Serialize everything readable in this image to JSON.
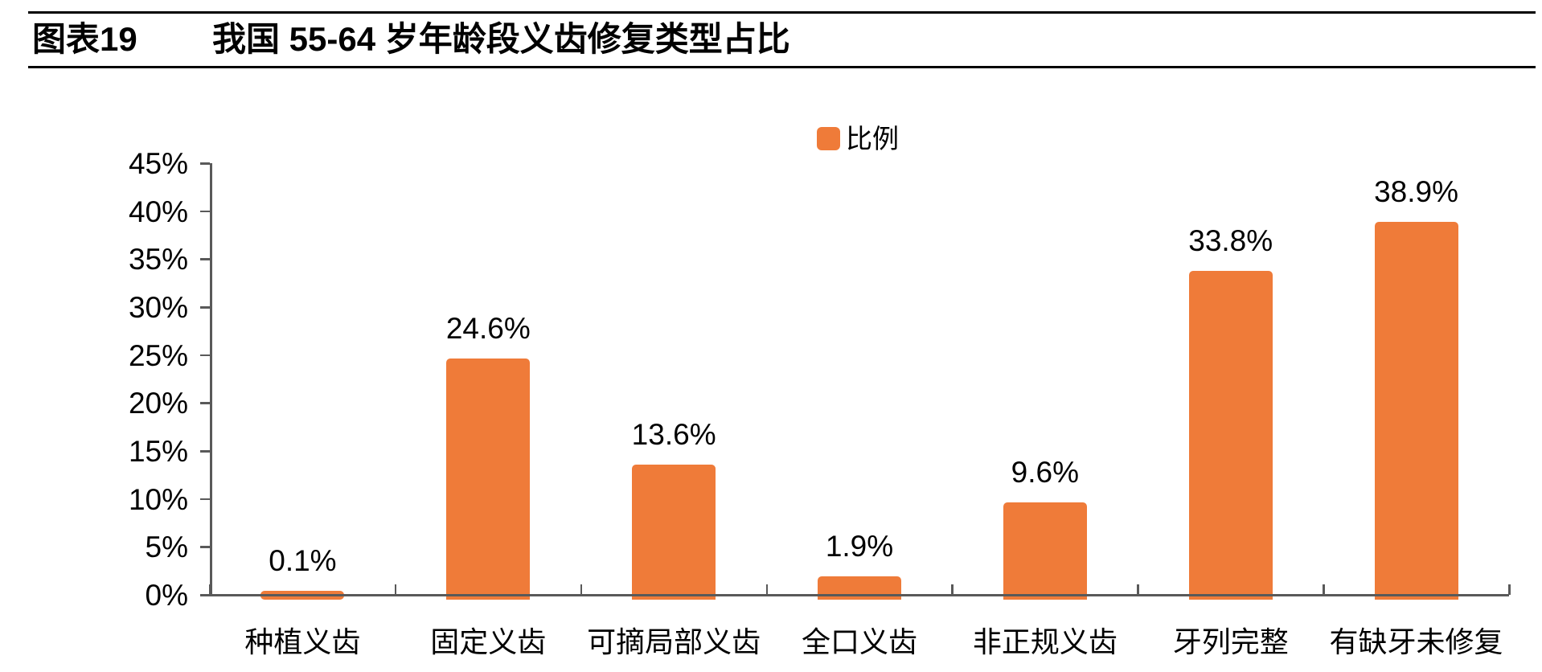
{
  "header": {
    "title_prefix": "图表19",
    "title": "我国 55-64 岁年龄段义齿修复类型占比"
  },
  "legend": {
    "label": "比例"
  },
  "chart_data": {
    "type": "bar",
    "title": "图表19 我国 55-64 岁年龄段义齿修复类型占比",
    "categories": [
      "种植义齿",
      "固定义齿",
      "可摘局部义齿",
      "全口义齿",
      "非正规义齿",
      "牙列完整",
      "有缺牙未修复"
    ],
    "series": [
      {
        "name": "比例",
        "values": [
          0.1,
          24.6,
          13.6,
          1.9,
          9.6,
          33.8,
          38.9
        ]
      }
    ],
    "data_labels": [
      "0.1%",
      "24.6%",
      "13.6%",
      "1.9%",
      "9.6%",
      "33.8%",
      "38.9%"
    ],
    "xlabel": "",
    "ylabel": "",
    "y_ticks": [
      "45%",
      "40%",
      "35%",
      "30%",
      "25%",
      "20%",
      "15%",
      "10%",
      "5%",
      "0%"
    ],
    "ylim": [
      0,
      45
    ],
    "grid": false,
    "legend_position": "top-center",
    "colors": {
      "bar": "#EF7B39",
      "axis": "#595959",
      "text": "#000000",
      "title_rule": "#000000"
    }
  }
}
